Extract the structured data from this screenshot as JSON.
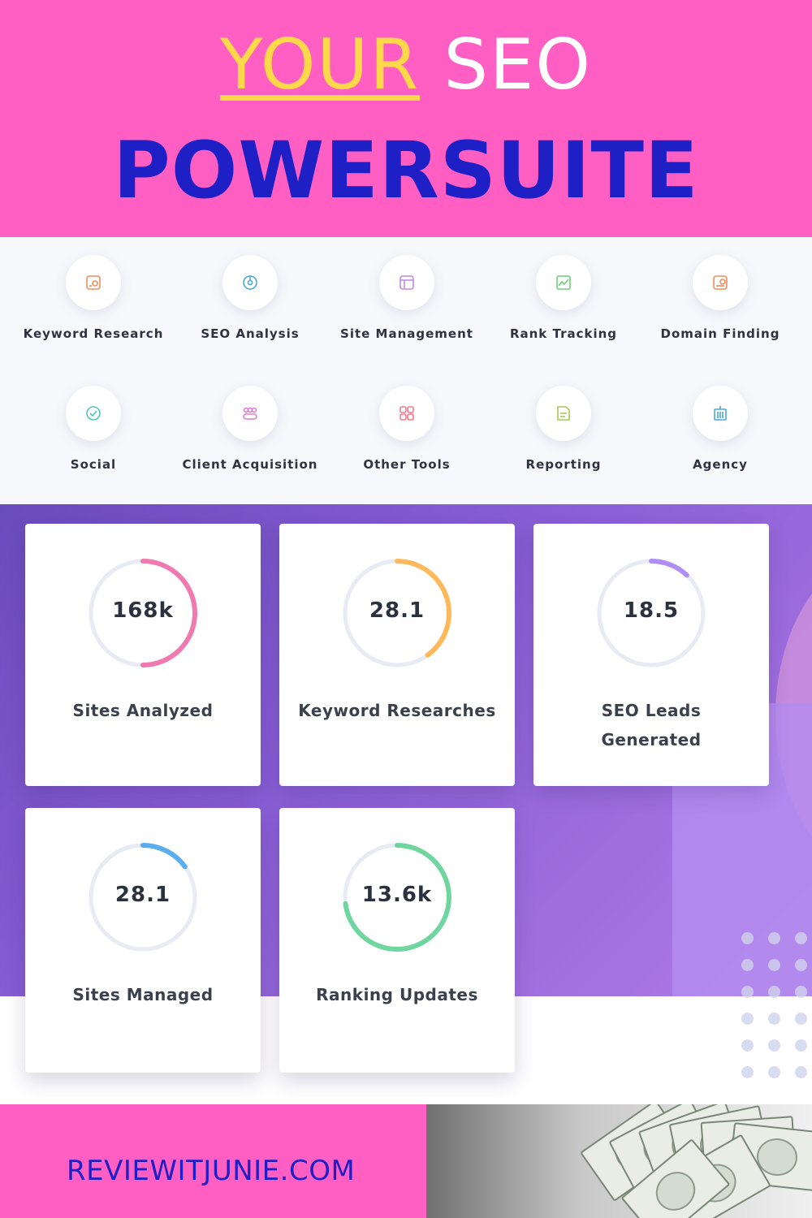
{
  "header": {
    "title_your": "YOUR",
    "title_seo": "SEO",
    "title_main": "POWERSUITE",
    "colors": {
      "background": "#ff5fc2",
      "your": "#ffd84a",
      "seo": "#ffffff",
      "main": "#1f1fc6"
    }
  },
  "tools": [
    {
      "label": "Keyword Research",
      "icon": "keyword-research-icon",
      "color": "#f28b5c"
    },
    {
      "label": "SEO Analysis",
      "icon": "seo-analysis-icon",
      "color": "#4aa8d8"
    },
    {
      "label": "Site Management",
      "icon": "site-management-icon",
      "color": "#c58ae0"
    },
    {
      "label": "Rank Tracking",
      "icon": "rank-tracking-icon",
      "color": "#6fcf7d"
    },
    {
      "label": "Domain Finding",
      "icon": "domain-finding-icon",
      "color": "#f28b5c"
    },
    {
      "label": "Social",
      "icon": "social-icon",
      "color": "#4cc7b8"
    },
    {
      "label": "Client Acquisition",
      "icon": "client-acquisition-icon",
      "color": "#e07ad0"
    },
    {
      "label": "Other Tools",
      "icon": "other-tools-icon",
      "color": "#f47a8a"
    },
    {
      "label": "Reporting",
      "icon": "reporting-icon",
      "color": "#a8c85a"
    },
    {
      "label": "Agency",
      "icon": "agency-icon",
      "color": "#4aa8d8"
    }
  ],
  "stats": [
    {
      "value": "168k",
      "label": "Sites Analyzed",
      "progress": 0.5,
      "color": "#f07ab0"
    },
    {
      "value": "28.1",
      "label": "Keyword Researches",
      "progress": 0.4,
      "color": "#ffb95a"
    },
    {
      "value": "18.5",
      "label": "SEO Leads Generated",
      "progress": 0.12,
      "color": "#b08cf5"
    },
    {
      "value": "28.1",
      "label": "Sites Managed",
      "progress": 0.15,
      "color": "#5aaeef"
    },
    {
      "value": "13.6k",
      "label": "Ranking Updates",
      "progress": 0.73,
      "color": "#6fd6a0"
    }
  ],
  "footer": {
    "site": "REVIEWITJUNIE.COM"
  }
}
